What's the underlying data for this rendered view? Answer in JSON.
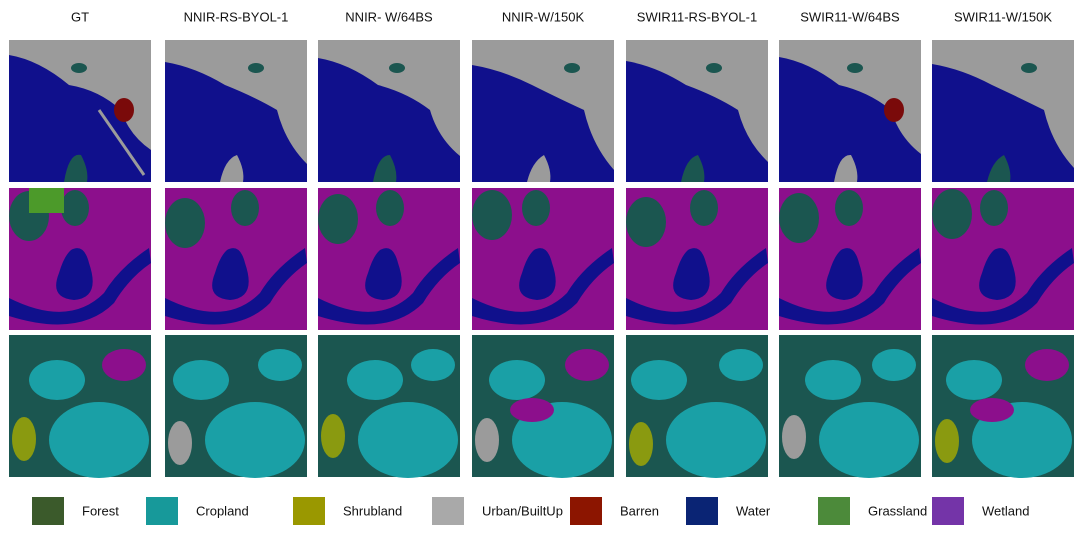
{
  "columns": [
    "GT",
    "NNIR-RS-BYOL-1",
    "NNIR- W/64BS",
    "NNIR-W/150K",
    "SWIR11-RS-BYOL-1",
    "SWIR11-W/64BS",
    "SWIR11-W/150K"
  ],
  "legend": [
    {
      "label": "Forest",
      "color": "#3b5a2b"
    },
    {
      "label": "Cropland",
      "color": "#17999a"
    },
    {
      "label": "Shrubland",
      "color": "#9a9800"
    },
    {
      "label": "Urban/BuiltUp",
      "color": "#a9a9a9"
    },
    {
      "label": "Barren",
      "color": "#8c1500"
    },
    {
      "label": "Water",
      "color": "#0a2474"
    },
    {
      "label": "Grassland",
      "color": "#4c8a3a"
    },
    {
      "label": "Wetland",
      "color": "#7434a8"
    }
  ]
}
